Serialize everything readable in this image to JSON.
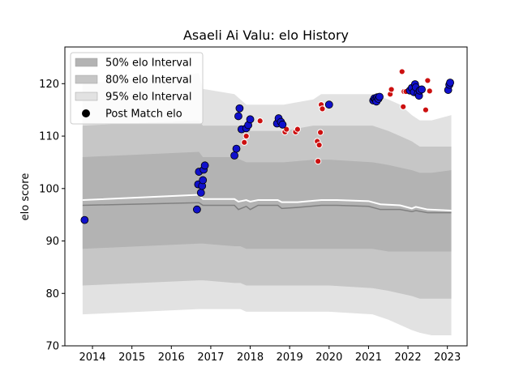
{
  "chart_data": {
    "type": "scatter",
    "title": "Asaeli Ai Valu: elo History",
    "xlabel": "",
    "ylabel": "elo score",
    "xlim": [
      2013.3,
      2023.5
    ],
    "ylim": [
      70,
      127
    ],
    "x_ticks": [
      2014,
      2015,
      2016,
      2017,
      2018,
      2019,
      2020,
      2021,
      2022,
      2023
    ],
    "y_ticks": [
      70,
      80,
      90,
      100,
      110,
      120
    ],
    "grid": false,
    "legend_position": "top-left",
    "legend": [
      {
        "label": "50% elo Interval",
        "kind": "patch",
        "color": "#b3b3b3"
      },
      {
        "label": "80% elo Interval",
        "kind": "patch",
        "color": "#c6c6c6"
      },
      {
        "label": "95% elo Interval",
        "kind": "patch",
        "color": "#e2e2e2"
      },
      {
        "label": "Post Match elo",
        "kind": "marker",
        "color": "#000000"
      }
    ],
    "band_x": [
      2013.75,
      2016.7,
      2016.8,
      2017.6,
      2017.75,
      2017.9,
      2018.1,
      2018.7,
      2018.85,
      2019.6,
      2019.8,
      2020.0,
      2021.1,
      2021.5,
      2021.8,
      2022.1,
      2022.3,
      2022.6,
      2023.1
    ],
    "intervals": {
      "95": {
        "color": "#e2e2e2",
        "upper": [
          120,
          122,
          119,
          118,
          117,
          116,
          116,
          116,
          116,
          117,
          118,
          118,
          118,
          117,
          116,
          114,
          113,
          113,
          114
        ],
        "lower": [
          76,
          77,
          77,
          77,
          77,
          76.5,
          76.5,
          76.5,
          76.5,
          76.5,
          76.5,
          76.5,
          76,
          75,
          74,
          73,
          72.5,
          72,
          72
        ]
      },
      "80": {
        "color": "#c6c6c6",
        "upper": [
          112,
          113,
          112,
          112,
          112,
          111,
          111,
          111,
          111,
          112,
          112,
          112,
          112,
          111,
          110,
          109,
          108,
          108,
          108
        ],
        "lower": [
          81.5,
          82.5,
          82.5,
          82,
          82,
          81.5,
          81.5,
          81.5,
          81.5,
          81.5,
          81.5,
          81.5,
          81,
          80.5,
          80,
          79.5,
          79,
          79,
          79
        ]
      },
      "50": {
        "color": "#b3b3b3",
        "upper": [
          106,
          107,
          106,
          106,
          105.5,
          105,
          105,
          105,
          105,
          105.5,
          105.5,
          105.5,
          105,
          104.5,
          104,
          103.5,
          103,
          103,
          103.5
        ],
        "lower": [
          88.5,
          89.5,
          89.5,
          89,
          89,
          88.5,
          88.5,
          88.5,
          88.5,
          88.5,
          88.5,
          88.5,
          88.5,
          88,
          88,
          88,
          88,
          88,
          88
        ]
      }
    },
    "mean_line": {
      "color": "#808080",
      "x": [
        2013.75,
        2016.7,
        2016.8,
        2017.6,
        2017.7,
        2017.9,
        2018.0,
        2018.2,
        2018.7,
        2018.8,
        2019.2,
        2019.8,
        2020.2,
        2021.0,
        2021.3,
        2021.8,
        2022.1,
        2022.2,
        2022.5,
        2023.1
      ],
      "y": [
        96.8,
        97.3,
        96.8,
        96.8,
        96.0,
        96.6,
        96.0,
        96.8,
        96.8,
        96.2,
        96.4,
        96.8,
        96.8,
        96.6,
        96.0,
        96.0,
        95.6,
        95.8,
        95.4,
        95.4
      ]
    },
    "median_line": {
      "color": "#ffffff",
      "x": [
        2013.75,
        2016.7,
        2016.8,
        2017.6,
        2017.7,
        2017.9,
        2018.0,
        2018.2,
        2018.7,
        2018.8,
        2019.2,
        2019.8,
        2020.2,
        2021.0,
        2021.3,
        2021.8,
        2022.1,
        2022.2,
        2022.5,
        2023.1
      ],
      "y": [
        97.8,
        98.8,
        98.0,
        98.0,
        97.5,
        97.8,
        97.5,
        97.8,
        97.8,
        97.4,
        97.4,
        97.8,
        97.8,
        97.6,
        97.0,
        96.8,
        96.2,
        96.5,
        96.0,
        95.8
      ]
    },
    "post_match_elo": {
      "blue": {
        "color": "#1010cc",
        "points": [
          [
            2013.8,
            94.0
          ],
          [
            2016.65,
            96.0
          ],
          [
            2016.68,
            100.8
          ],
          [
            2016.7,
            103.2
          ],
          [
            2016.75,
            99.2
          ],
          [
            2016.78,
            100.5
          ],
          [
            2016.8,
            101.6
          ],
          [
            2016.82,
            103.6
          ],
          [
            2016.85,
            104.4
          ],
          [
            2017.6,
            106.3
          ],
          [
            2017.65,
            107.6
          ],
          [
            2017.7,
            113.8
          ],
          [
            2017.73,
            115.3
          ],
          [
            2017.78,
            111.3
          ],
          [
            2017.9,
            111.5
          ],
          [
            2017.95,
            112.1
          ],
          [
            2018.0,
            113.2
          ],
          [
            2018.68,
            112.4
          ],
          [
            2018.72,
            113.4
          ],
          [
            2018.78,
            112.7
          ],
          [
            2018.82,
            112.2
          ],
          [
            2020.0,
            116.0
          ],
          [
            2021.12,
            116.8
          ],
          [
            2021.15,
            117.2
          ],
          [
            2021.18,
            117.0
          ],
          [
            2021.2,
            116.6
          ],
          [
            2021.22,
            117.4
          ],
          [
            2021.25,
            117.1
          ],
          [
            2021.28,
            117.5
          ],
          [
            2022.05,
            118.7
          ],
          [
            2022.1,
            119.2
          ],
          [
            2022.15,
            118.4
          ],
          [
            2022.18,
            119.9
          ],
          [
            2022.2,
            119.3
          ],
          [
            2022.25,
            118.1
          ],
          [
            2022.28,
            117.7
          ],
          [
            2022.3,
            118.7
          ],
          [
            2022.35,
            118.9
          ],
          [
            2023.02,
            118.8
          ],
          [
            2023.05,
            119.8
          ],
          [
            2023.07,
            120.2
          ]
        ]
      },
      "red": {
        "color": "#cc1010",
        "points": [
          [
            2017.85,
            108.8
          ],
          [
            2017.9,
            110.0
          ],
          [
            2018.25,
            112.9
          ],
          [
            2018.88,
            110.8
          ],
          [
            2018.92,
            111.3
          ],
          [
            2019.15,
            110.8
          ],
          [
            2019.2,
            111.3
          ],
          [
            2019.7,
            109.0
          ],
          [
            2019.72,
            105.2
          ],
          [
            2019.75,
            108.3
          ],
          [
            2019.78,
            110.7
          ],
          [
            2019.8,
            116.0
          ],
          [
            2019.83,
            115.2
          ],
          [
            2021.55,
            118.0
          ],
          [
            2021.58,
            118.9
          ],
          [
            2021.85,
            122.3
          ],
          [
            2021.9,
            118.5
          ],
          [
            2021.95,
            118.5
          ],
          [
            2021.88,
            115.6
          ],
          [
            2022.15,
            118.3
          ],
          [
            2022.45,
            115.0
          ],
          [
            2022.5,
            120.6
          ],
          [
            2022.55,
            118.6
          ]
        ]
      }
    }
  }
}
